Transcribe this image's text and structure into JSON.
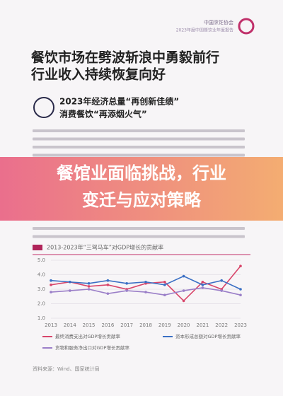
{
  "header": {
    "org": "中国烹饪协会",
    "report": "2023年度中国餐饮业年度报告"
  },
  "title": [
    "餐饮市场在劈波斩浪中勇毅前行",
    "行业收入持续恢复向好"
  ],
  "section": [
    "2023年经济总量“再创新佳绩”",
    "消费餐饮“再添烟火气”"
  ],
  "banner": [
    "餐馆业面临挑战，行业",
    "变迁与应对策略"
  ],
  "chart_data": {
    "type": "line",
    "title": "2013-2023年“三驾马车”对GDP增长的贡献率",
    "categories": [
      "2013",
      "2014",
      "2015",
      "2016",
      "2017",
      "2018",
      "2019",
      "2020",
      "2021",
      "2022",
      "2023"
    ],
    "series": [
      {
        "name": "最终消费支出对GDP增长贡献率",
        "color": "#d8456a",
        "values": [
          3.3,
          3.5,
          3.2,
          3.3,
          3.0,
          3.4,
          3.5,
          2.2,
          3.5,
          3.0,
          4.6
        ]
      },
      {
        "name": "资本形成总额对GDP增长贡献率",
        "color": "#3a6fc4",
        "values": [
          3.6,
          3.5,
          3.4,
          3.6,
          3.4,
          3.5,
          3.3,
          3.9,
          3.3,
          3.6,
          3.0
        ]
      },
      {
        "name": "货物和服务净出口对GDP增长贡献率",
        "color": "#9b7fc8",
        "values": [
          2.8,
          2.9,
          3.0,
          2.7,
          2.9,
          2.8,
          2.6,
          2.9,
          3.1,
          2.9,
          2.6
        ]
      }
    ],
    "ylim": [
      1,
      5
    ],
    "yticks": [
      {
        "value": 1,
        "label": "1.0"
      },
      {
        "value": 2,
        "label": "2.0"
      },
      {
        "value": 3,
        "label": "3.0"
      },
      {
        "value": 4,
        "label": "4.0"
      },
      {
        "value": 5,
        "label": "5.0"
      }
    ],
    "grid": true
  },
  "source": "资料来源：Wind、国家统计局"
}
